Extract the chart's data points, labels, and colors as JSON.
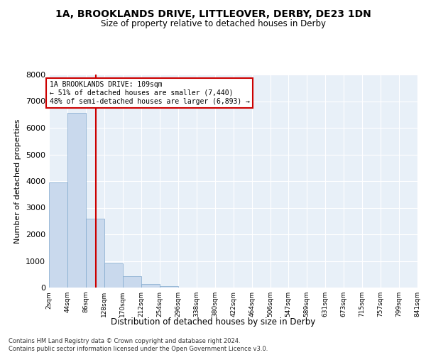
{
  "title": "1A, BROOKLANDS DRIVE, LITTLEOVER, DERBY, DE23 1DN",
  "subtitle": "Size of property relative to detached houses in Derby",
  "xlabel": "Distribution of detached houses by size in Derby",
  "ylabel": "Number of detached properties",
  "footnote1": "Contains HM Land Registry data © Crown copyright and database right 2024.",
  "footnote2": "Contains public sector information licensed under the Open Government Licence v3.0.",
  "bar_color": "#c9d9ed",
  "bar_edge_color": "#7fa8cd",
  "background_color": "#e8f0f8",
  "annotation_box_color": "#cc0000",
  "vline_color": "#cc0000",
  "property_size": 109,
  "annotation_line1": "1A BROOKLANDS DRIVE: 109sqm",
  "annotation_line2": "← 51% of detached houses are smaller (7,440)",
  "annotation_line3": "48% of semi-detached houses are larger (6,893) →",
  "bin_edges": [
    2,
    44,
    86,
    128,
    170,
    212,
    254,
    296,
    338,
    380,
    422,
    464,
    506,
    547,
    589,
    631,
    673,
    715,
    757,
    799,
    841
  ],
  "bin_labels": [
    "2sqm",
    "44sqm",
    "86sqm",
    "128sqm",
    "170sqm",
    "212sqm",
    "254sqm",
    "296sqm",
    "338sqm",
    "380sqm",
    "422sqm",
    "464sqm",
    "506sqm",
    "547sqm",
    "589sqm",
    "631sqm",
    "673sqm",
    "715sqm",
    "757sqm",
    "799sqm",
    "841sqm"
  ],
  "bar_heights": [
    3950,
    6550,
    2600,
    900,
    430,
    140,
    50,
    10,
    0,
    0,
    0,
    0,
    0,
    0,
    0,
    0,
    0,
    0,
    0,
    0
  ],
  "ylim": [
    0,
    8000
  ],
  "yticks": [
    0,
    1000,
    2000,
    3000,
    4000,
    5000,
    6000,
    7000,
    8000
  ]
}
